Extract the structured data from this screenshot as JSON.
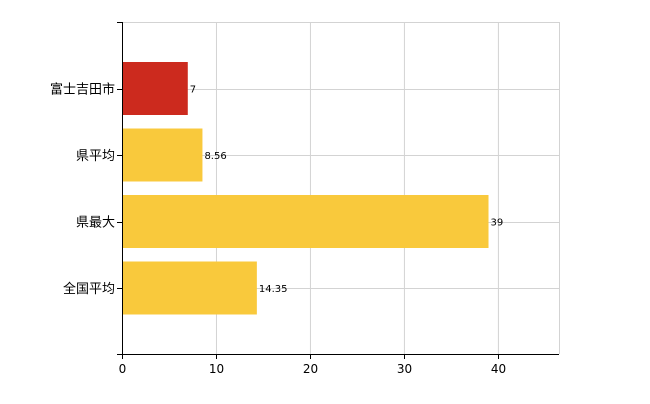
{
  "colors": {
    "highlight": "#cc2a1e",
    "default": "#f9c93c",
    "grid": "#d3d3d3",
    "axis": "#000000"
  },
  "chart_data": {
    "type": "bar",
    "orientation": "horizontal",
    "categories": [
      "富士吉田市",
      "県平均",
      "県最大",
      "全国平均"
    ],
    "values": [
      7,
      8.56,
      39,
      14.35
    ],
    "value_labels": [
      "7",
      "8.56",
      "39",
      "14.35"
    ],
    "highlight_index": 0,
    "xlim": [
      0,
      46.5
    ],
    "xticks": [
      0,
      10,
      20,
      30,
      40
    ],
    "xtick_labels": [
      "0",
      "10",
      "20",
      "30",
      "40"
    ],
    "grid": true,
    "legend": "none"
  }
}
